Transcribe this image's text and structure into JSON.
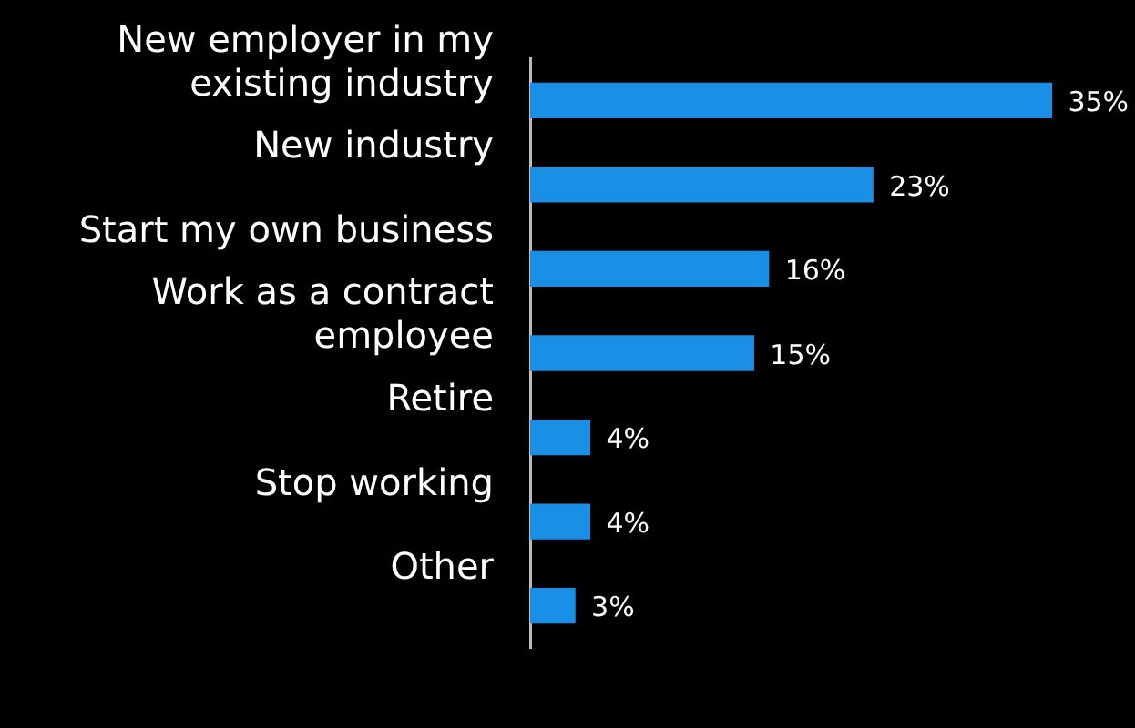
{
  "chart_data": {
    "type": "bar",
    "orientation": "horizontal",
    "categories": [
      "New employer in my existing industry",
      "New industry",
      "Start my own business",
      "Work as a contract employee",
      "Retire",
      "Stop working",
      "Other"
    ],
    "values": [
      35,
      23,
      16,
      15,
      4,
      4,
      3
    ],
    "value_labels": [
      "35%",
      "23%",
      "16%",
      "15%",
      "4%",
      "4%",
      "3%"
    ],
    "color": "#1a8fe6",
    "legend": false,
    "tick_labels": "y"
  }
}
